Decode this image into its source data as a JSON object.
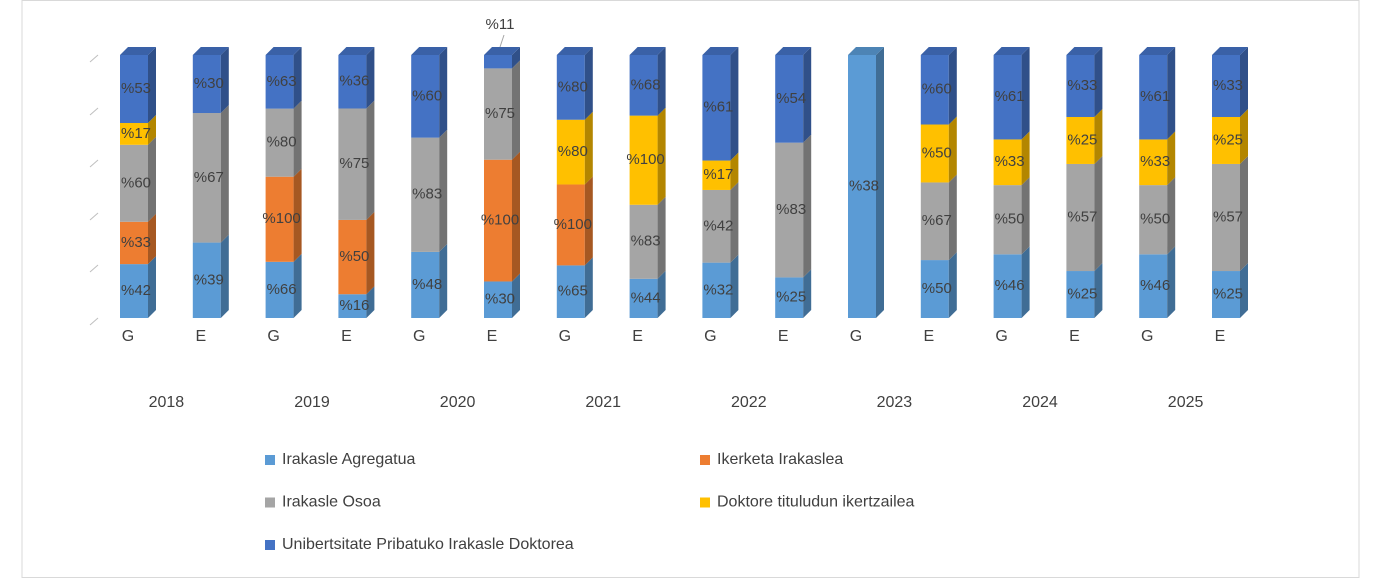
{
  "chart_data": {
    "type": "stacked_bar_100_3d",
    "categories": [
      "G",
      "E",
      "G",
      "E",
      "G",
      "E",
      "G",
      "E",
      "G",
      "E",
      "G",
      "E",
      "G",
      "E",
      "G",
      "E"
    ],
    "category_groups": [
      "2018",
      "2019",
      "2020",
      "2021",
      "2022",
      "2023",
      "2024",
      "2025"
    ],
    "series": [
      {
        "name": "Irakasle Agregatua",
        "color": "#5b9bd5",
        "values": [
          42,
          39,
          66,
          16,
          48,
          30,
          65,
          44,
          32,
          25,
          38,
          50,
          46,
          25,
          46,
          25
        ],
        "value_labels": [
          "%42",
          "%39",
          "%66",
          "%16",
          "%48",
          "%30",
          "%65",
          "%44",
          "%32",
          "%25",
          "%38",
          "%50",
          "%46",
          "%25",
          "%46",
          "%25"
        ]
      },
      {
        "name": "Ikerketa Irakaslea",
        "color": "#ed7d31",
        "values": [
          33,
          null,
          100,
          50,
          null,
          100,
          100,
          null,
          null,
          null,
          null,
          null,
          null,
          null,
          null,
          null
        ],
        "value_labels": [
          "%33",
          null,
          "%100",
          "%50",
          null,
          "%100",
          "%100",
          null,
          null,
          null,
          null,
          null,
          null,
          null,
          null,
          null
        ]
      },
      {
        "name": "Irakasle Osoa",
        "color": "#a5a5a5",
        "values": [
          60,
          67,
          80,
          75,
          83,
          75,
          null,
          83,
          42,
          83,
          null,
          67,
          50,
          57,
          50,
          57
        ],
        "value_labels": [
          "%60",
          "%67",
          "%80",
          "%75",
          "%83",
          "%75",
          null,
          "%83",
          "%42",
          "%83",
          null,
          "%67",
          "%50",
          "%57",
          "%50",
          "%57"
        ]
      },
      {
        "name": "Doktore tituludun ikertzailea",
        "color": "#ffc000",
        "values": [
          17,
          null,
          null,
          null,
          null,
          null,
          80,
          100,
          17,
          null,
          null,
          50,
          33,
          25,
          33,
          25
        ],
        "value_labels": [
          "%17",
          null,
          null,
          null,
          null,
          null,
          "%80",
          "%100",
          "%17",
          null,
          null,
          "%50",
          "%33",
          "%25",
          "%33",
          "%25"
        ]
      },
      {
        "name": "Unibertsitate Pribatuko Irakasle Doktorea",
        "color": "#4472c4",
        "values": [
          53,
          30,
          63,
          36,
          60,
          11,
          80,
          68,
          61,
          54,
          null,
          60,
          61,
          33,
          61,
          33
        ],
        "value_labels": [
          "%53",
          "%30",
          "%63",
          "%36",
          "%60",
          "%11",
          "%80",
          "%68",
          "%61",
          "%54",
          null,
          "%60",
          "%61",
          "%33",
          "%61",
          "%33"
        ]
      }
    ]
  }
}
